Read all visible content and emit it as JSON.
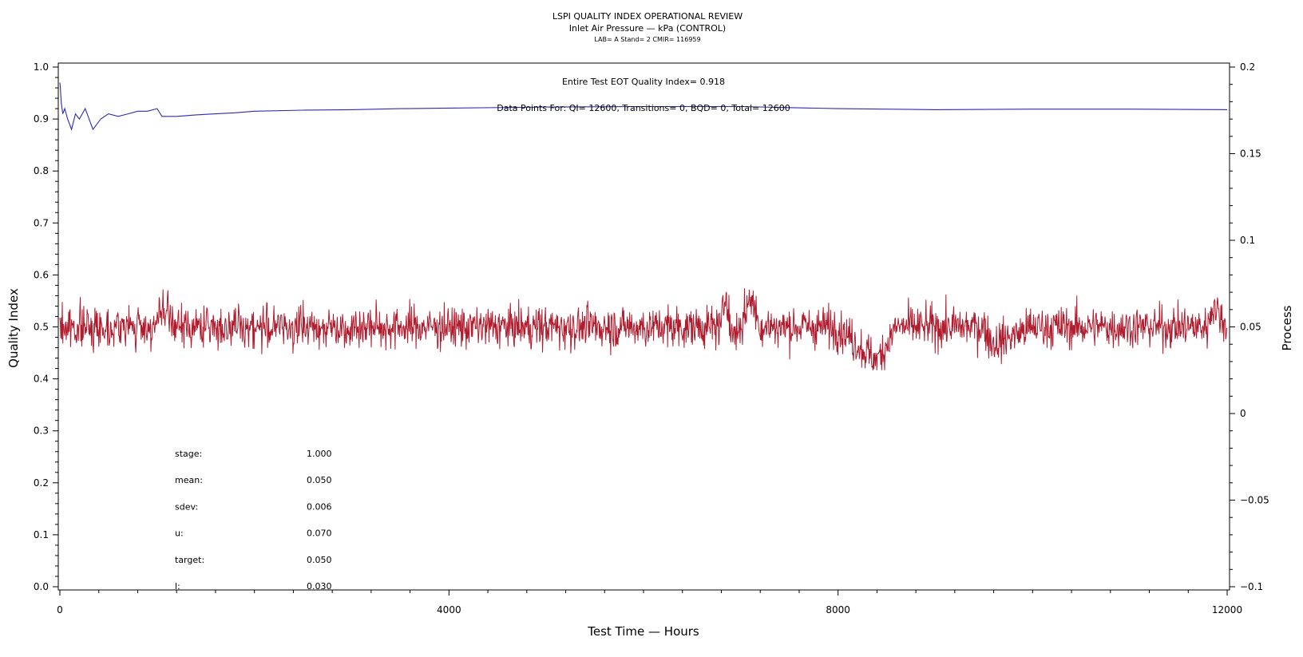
{
  "chart_data": {
    "type": "line",
    "title": "LSPI QUALITY INDEX OPERATIONAL REVIEW",
    "subtitle": "Inlet Air Pressure — kPa (CONTROL)",
    "info_line": "LAB= A Stand= 2 CMIR= 116959",
    "xlabel": "Test Time — Hours",
    "ylabel_left": "Quality Index",
    "ylabel_right": "Process",
    "xlim": [
      0,
      12000
    ],
    "ylim_left": [
      0,
      1
    ],
    "ylim_right": [
      -0.1,
      0.2
    ],
    "x_ticks": [
      "0",
      "4000",
      "8000",
      "12000"
    ],
    "y_left_ticks": [
      "0.0",
      "0.1",
      "0.2",
      "0.3",
      "0.4",
      "0.5",
      "0.6",
      "0.7",
      "0.8",
      "0.9",
      "1.0"
    ],
    "y_right_ticks": [
      "−0.1",
      "−0.05",
      "0",
      "0.05",
      "0.1",
      "0.15",
      "0.2"
    ],
    "grid": false,
    "colors": {
      "quality": "#2b2bb8",
      "process": "#b01c2e"
    },
    "annotations": {
      "eot": "Entire Test EOT Quality Index=   0.918",
      "points": "Data Points For: QI= 12600, Transitions=     0, BQD=     0, Total= 12600"
    },
    "stats": [
      {
        "label": "stage:",
        "value": "1.000"
      },
      {
        "label": "mean:",
        "value": "0.050"
      },
      {
        "label": "sdev:",
        "value": "0.006"
      },
      {
        "label": "u:",
        "value": "0.070"
      },
      {
        "label": "target:",
        "value": "0.050"
      },
      {
        "label": "l:",
        "value": "0.030"
      }
    ],
    "series": [
      {
        "axis": "left",
        "x": [
          0,
          5,
          15,
          30,
          50,
          80,
          120,
          160,
          200,
          260,
          300,
          340,
          380,
          420,
          500,
          600,
          700,
          800,
          900,
          1000,
          1050,
          1100,
          1200,
          1400,
          1600,
          1800,
          2000,
          2500,
          3000,
          3500,
          4000,
          5000,
          6000,
          7000,
          7500,
          8000,
          9000,
          10000,
          11000,
          12000
        ],
        "y": [
          0.97,
          0.96,
          0.93,
          0.91,
          0.92,
          0.9,
          0.88,
          0.91,
          0.9,
          0.92,
          0.9,
          0.88,
          0.89,
          0.9,
          0.91,
          0.905,
          0.91,
          0.915,
          0.915,
          0.92,
          0.905,
          0.905,
          0.905,
          0.908,
          0.91,
          0.912,
          0.915,
          0.917,
          0.918,
          0.92,
          0.921,
          0.923,
          0.924,
          0.924,
          0.922,
          0.92,
          0.918,
          0.919,
          0.919,
          0.918
        ]
      },
      {
        "axis": "right",
        "x": [
          0,
          200,
          400,
          600,
          800,
          1000,
          1030,
          1200,
          1500,
          1800,
          2000,
          2500,
          3000,
          3300,
          4000,
          4500,
          4800,
          5000,
          5500,
          6000,
          6500,
          6800,
          6850,
          6900,
          7000,
          7100,
          7200,
          7500,
          8000,
          8400,
          8600,
          9000,
          9500,
          9600,
          10000,
          10500,
          11000,
          11500,
          11800,
          11850,
          12000
        ],
        "y": [
          0.05,
          0.05,
          0.05,
          0.05,
          0.05,
          0.05,
          0.06,
          0.05,
          0.05,
          0.05,
          0.05,
          0.05,
          0.05,
          0.05,
          0.05,
          0.05,
          0.05,
          0.05,
          0.05,
          0.05,
          0.05,
          0.05,
          0.073,
          0.045,
          0.05,
          0.068,
          0.05,
          0.05,
          0.05,
          0.03,
          0.05,
          0.05,
          0.05,
          0.04,
          0.05,
          0.05,
          0.05,
          0.05,
          0.05,
          0.063,
          0.05
        ]
      }
    ],
    "process_noise": {
      "points": 12600,
      "mean": 0.05,
      "sdev": 0.006,
      "seed": 7
    }
  }
}
